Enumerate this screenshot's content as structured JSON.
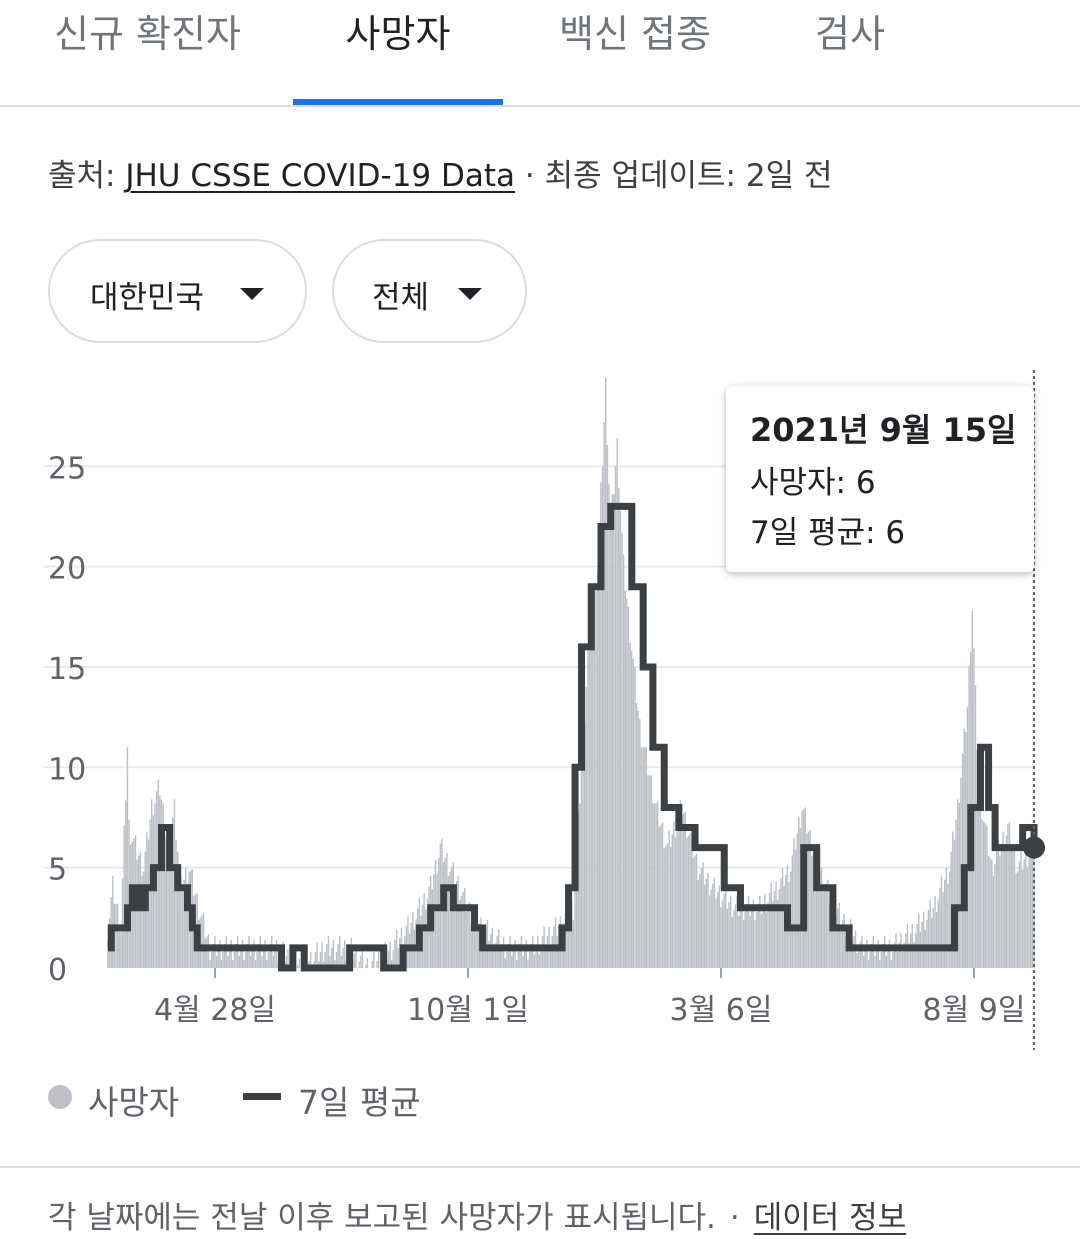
{
  "tabs": [
    {
      "label": "신규 확진자",
      "active": false
    },
    {
      "label": "사망자",
      "active": true
    },
    {
      "label": "백신 접종",
      "active": false
    },
    {
      "label": "검사",
      "active": false
    }
  ],
  "source": {
    "prefix": "출처: ",
    "link": "JHU CSSE COVID-19 Data",
    "separator": " · ",
    "updated": "최종 업데이트: 2일 전"
  },
  "filters": {
    "region": "대한민국",
    "scope": "전체"
  },
  "tooltip": {
    "date": "2021년 9월 15일",
    "deaths": "사망자: 6",
    "average": "7일 평균: 6"
  },
  "legend": {
    "deaths": "사망자",
    "average": "7일 평균"
  },
  "footnote": {
    "text": "각 날짜에는 전날 이후 보고된 사망자가 표시됩니다.",
    "separator": "·",
    "link": "데이터 정보"
  },
  "colors": {
    "accent": "#1a73e8",
    "bars": "#bdc1c6",
    "average_line": "#3c4043",
    "grid": "#e8eaed"
  },
  "chart_data": {
    "type": "bar",
    "title": "",
    "xlabel": "",
    "ylabel": "",
    "ylim": [
      0,
      29
    ],
    "yticks": [
      0,
      5,
      10,
      15,
      20,
      25
    ],
    "x_range": [
      "2020-02-22",
      "2021-09-15"
    ],
    "xticks": [
      {
        "date": "2020-04-28",
        "label": "4월 28일"
      },
      {
        "date": "2020-10-01",
        "label": "10월 1일"
      },
      {
        "date": "2021-03-06",
        "label": "3월 6일"
      },
      {
        "date": "2021-08-09",
        "label": "8월 9일"
      }
    ],
    "series": [
      {
        "name": "사망자",
        "type": "bar",
        "points": [
          [
            "2020-02-22",
            2
          ],
          [
            "2020-02-25",
            4
          ],
          [
            "2020-03-01",
            2
          ],
          [
            "2020-03-05",
            11
          ],
          [
            "2020-03-06",
            7
          ],
          [
            "2020-03-10",
            6
          ],
          [
            "2020-03-15",
            5
          ],
          [
            "2020-03-20",
            8
          ],
          [
            "2020-03-25",
            9
          ],
          [
            "2020-03-30",
            6
          ],
          [
            "2020-04-03",
            8
          ],
          [
            "2020-04-07",
            4
          ],
          [
            "2020-04-12",
            5
          ],
          [
            "2020-04-18",
            3
          ],
          [
            "2020-04-25",
            1
          ],
          [
            "2020-05-05",
            1
          ],
          [
            "2020-05-20",
            1
          ],
          [
            "2020-06-05",
            1
          ],
          [
            "2020-06-20",
            0
          ],
          [
            "2020-07-05",
            1
          ],
          [
            "2020-07-20",
            1
          ],
          [
            "2020-08-01",
            0
          ],
          [
            "2020-08-15",
            1
          ],
          [
            "2020-08-25",
            2
          ],
          [
            "2020-09-02",
            3
          ],
          [
            "2020-09-08",
            4
          ],
          [
            "2020-09-14",
            6
          ],
          [
            "2020-09-20",
            5
          ],
          [
            "2020-09-26",
            4
          ],
          [
            "2020-10-01",
            3
          ],
          [
            "2020-10-10",
            2
          ],
          [
            "2020-10-25",
            1
          ],
          [
            "2020-11-10",
            1
          ],
          [
            "2020-11-25",
            2
          ],
          [
            "2020-12-05",
            3
          ],
          [
            "2020-12-10",
            10
          ],
          [
            "2020-12-15",
            17
          ],
          [
            "2020-12-20",
            20
          ],
          [
            "2020-12-25",
            29
          ],
          [
            "2020-12-28",
            22
          ],
          [
            "2021-01-01",
            26
          ],
          [
            "2021-01-05",
            20
          ],
          [
            "2021-01-10",
            16
          ],
          [
            "2021-01-15",
            12
          ],
          [
            "2021-01-20",
            10
          ],
          [
            "2021-01-25",
            8
          ],
          [
            "2021-02-01",
            6
          ],
          [
            "2021-02-10",
            8
          ],
          [
            "2021-02-20",
            5
          ],
          [
            "2021-03-01",
            4
          ],
          [
            "2021-03-15",
            3
          ],
          [
            "2021-03-30",
            3
          ],
          [
            "2021-04-10",
            4
          ],
          [
            "2021-04-18",
            5
          ],
          [
            "2021-04-25",
            8
          ],
          [
            "2021-05-05",
            5
          ],
          [
            "2021-05-15",
            3
          ],
          [
            "2021-06-01",
            1
          ],
          [
            "2021-06-20",
            1
          ],
          [
            "2021-07-05",
            2
          ],
          [
            "2021-07-15",
            3
          ],
          [
            "2021-07-25",
            5
          ],
          [
            "2021-07-30",
            8
          ],
          [
            "2021-08-05",
            13
          ],
          [
            "2021-08-08",
            18
          ],
          [
            "2021-08-12",
            9
          ],
          [
            "2021-08-20",
            5
          ],
          [
            "2021-08-30",
            7
          ],
          [
            "2021-09-05",
            5
          ],
          [
            "2021-09-15",
            6
          ]
        ]
      },
      {
        "name": "7일 평균",
        "type": "line",
        "points": [
          [
            "2020-02-22",
            1
          ],
          [
            "2020-02-24",
            2
          ],
          [
            "2020-03-01",
            2
          ],
          [
            "2020-03-05",
            3
          ],
          [
            "2020-03-08",
            4
          ],
          [
            "2020-03-12",
            3
          ],
          [
            "2020-03-16",
            4
          ],
          [
            "2020-03-21",
            5
          ],
          [
            "2020-03-26",
            7
          ],
          [
            "2020-03-31",
            5
          ],
          [
            "2020-04-05",
            4
          ],
          [
            "2020-04-11",
            3
          ],
          [
            "2020-04-14",
            2
          ],
          [
            "2020-04-17",
            1
          ],
          [
            "2020-06-05",
            1
          ],
          [
            "2020-06-08",
            0
          ],
          [
            "2020-06-15",
            1
          ],
          [
            "2020-06-22",
            0
          ],
          [
            "2020-07-20",
            1
          ],
          [
            "2020-08-01",
            1
          ],
          [
            "2020-08-10",
            0
          ],
          [
            "2020-08-22",
            1
          ],
          [
            "2020-09-01",
            2
          ],
          [
            "2020-09-08",
            3
          ],
          [
            "2020-09-16",
            4
          ],
          [
            "2020-09-22",
            3
          ],
          [
            "2020-10-05",
            2
          ],
          [
            "2020-10-10",
            1
          ],
          [
            "2020-11-25",
            1
          ],
          [
            "2020-11-28",
            2
          ],
          [
            "2020-12-02",
            4
          ],
          [
            "2020-12-06",
            10
          ],
          [
            "2020-12-10",
            16
          ],
          [
            "2020-12-16",
            19
          ],
          [
            "2020-12-22",
            22
          ],
          [
            "2020-12-28",
            23
          ],
          [
            "2021-01-04",
            23
          ],
          [
            "2021-01-10",
            19
          ],
          [
            "2021-01-17",
            15
          ],
          [
            "2021-01-23",
            11
          ],
          [
            "2021-01-30",
            8
          ],
          [
            "2021-02-08",
            7
          ],
          [
            "2021-02-18",
            6
          ],
          [
            "2021-03-01",
            6
          ],
          [
            "2021-03-08",
            4
          ],
          [
            "2021-03-18",
            3
          ],
          [
            "2021-04-06",
            3
          ],
          [
            "2021-04-16",
            2
          ],
          [
            "2021-04-26",
            6
          ],
          [
            "2021-05-04",
            4
          ],
          [
            "2021-05-14",
            2
          ],
          [
            "2021-05-24",
            1
          ],
          [
            "2021-07-22",
            1
          ],
          [
            "2021-07-28",
            3
          ],
          [
            "2021-08-03",
            5
          ],
          [
            "2021-08-07",
            8
          ],
          [
            "2021-08-13",
            11
          ],
          [
            "2021-08-18",
            8
          ],
          [
            "2021-08-22",
            6
          ],
          [
            "2021-09-03",
            6
          ],
          [
            "2021-09-08",
            7
          ],
          [
            "2021-09-15",
            6
          ]
        ]
      }
    ],
    "highlight": {
      "date": "2021-09-15",
      "deaths": 6,
      "average": 6
    },
    "grid": true,
    "legend_position": "bottom"
  }
}
